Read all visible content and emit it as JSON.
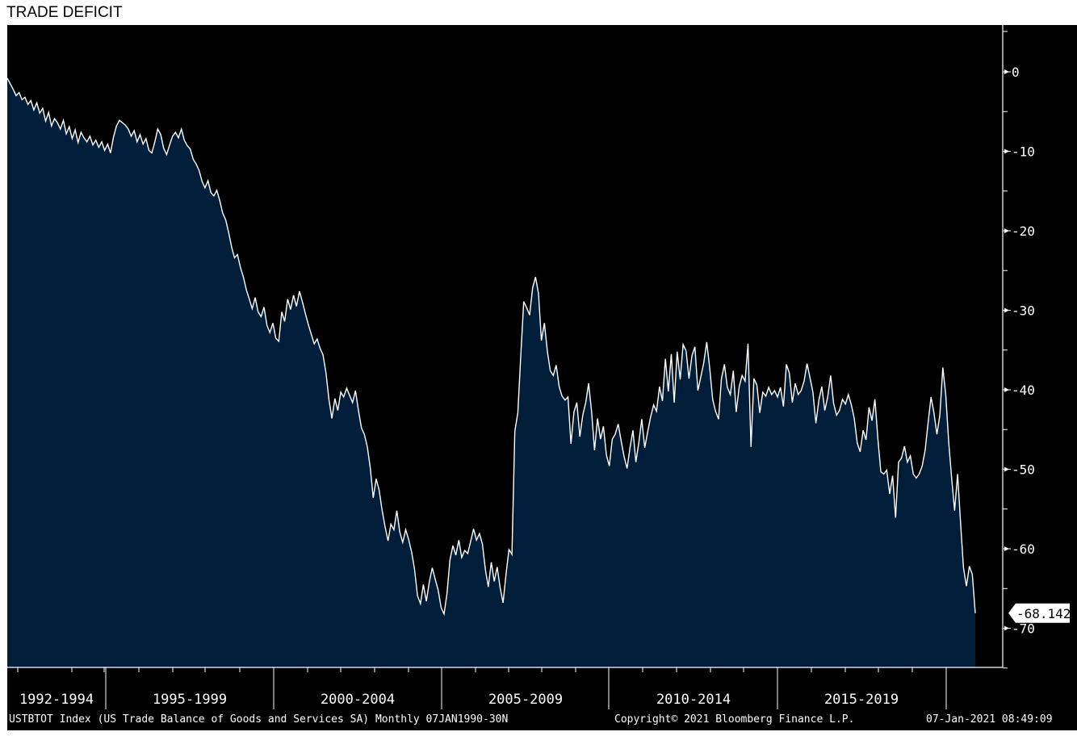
{
  "page_title": "TRADE DEFICIT",
  "chart_data": {
    "type": "area",
    "title": "TRADE DEFICIT",
    "ylim": [
      -75,
      5.5
    ],
    "y_ticks": [
      0,
      -10,
      -20,
      -30,
      -40,
      -50,
      -60,
      -70
    ],
    "y_tick_labels": [
      "0",
      "-10",
      "-20",
      "-30",
      "-40",
      "-50",
      "-60",
      "-70"
    ],
    "x_period_labels": [
      "1992-1994",
      "1995-1999",
      "2000-2004",
      "2005-2009",
      "2010-2014",
      "2015-2019"
    ],
    "last_value_label": "-68.142",
    "series": [
      {
        "values": [
          -0.8,
          -1.5,
          -2.2,
          -3.0,
          -2.6,
          -3.5,
          -3.2,
          -4.1,
          -3.6,
          -4.8,
          -3.9,
          -5.2,
          -4.6,
          -6.2,
          -5.1,
          -6.8,
          -5.9,
          -6.4,
          -7.2,
          -6.1,
          -7.8,
          -6.9,
          -8.4,
          -7.3,
          -8.9,
          -7.6,
          -8.3,
          -8.8,
          -8.1,
          -9.2,
          -8.6,
          -9.5,
          -8.8,
          -9.9,
          -9.1,
          -10.2,
          -8.2,
          -6.8,
          -6.1,
          -6.4,
          -6.7,
          -7.2,
          -8.1,
          -7.4,
          -8.8,
          -7.9,
          -9.1,
          -8.4,
          -9.9,
          -10.2,
          -8.8,
          -7.2,
          -7.9,
          -9.6,
          -10.4,
          -9.2,
          -8.1,
          -7.6,
          -8.3,
          -7.2,
          -8.6,
          -9.3,
          -9.7,
          -11.0,
          -11.6,
          -12.4,
          -13.8,
          -14.6,
          -13.7,
          -15.2,
          -15.6,
          -14.9,
          -16.2,
          -17.8,
          -18.6,
          -20.2,
          -22.0,
          -23.4,
          -23.0,
          -24.6,
          -25.8,
          -27.4,
          -28.6,
          -29.8,
          -28.4,
          -30.2,
          -30.8,
          -29.6,
          -31.9,
          -32.8,
          -31.6,
          -33.5,
          -33.9,
          -30.2,
          -31.4,
          -28.6,
          -29.9,
          -28.1,
          -29.5,
          -27.6,
          -28.9,
          -30.4,
          -31.8,
          -33.0,
          -34.2,
          -33.6,
          -34.8,
          -35.6,
          -37.9,
          -41.2,
          -43.6,
          -41.1,
          -42.6,
          -40.3,
          -40.9,
          -39.8,
          -40.7,
          -41.6,
          -40.1,
          -42.6,
          -44.8,
          -45.6,
          -47.2,
          -49.8,
          -53.6,
          -51.2,
          -52.6,
          -55.1,
          -57.2,
          -59.0,
          -56.9,
          -57.6,
          -55.2,
          -57.9,
          -59.2,
          -57.6,
          -58.8,
          -60.4,
          -62.6,
          -65.9,
          -66.9,
          -64.5,
          -66.6,
          -64.2,
          -62.4,
          -63.8,
          -65.2,
          -67.4,
          -68.2,
          -65.6,
          -61.4,
          -59.6,
          -60.8,
          -58.9,
          -61.1,
          -60.2,
          -60.6,
          -59.1,
          -57.5,
          -58.9,
          -58.1,
          -59.4,
          -62.6,
          -64.8,
          -61.7,
          -64.1,
          -62.3,
          -64.9,
          -66.8,
          -63.2,
          -60.1,
          -60.7,
          -45.2,
          -42.9,
          -35.6,
          -28.9,
          -29.7,
          -30.6,
          -27.2,
          -25.8,
          -27.9,
          -33.8,
          -31.6,
          -35.2,
          -37.6,
          -38.2,
          -36.9,
          -39.6,
          -40.8,
          -41.3,
          -40.9,
          -46.8,
          -42.8,
          -41.6,
          -45.9,
          -43.2,
          -41.6,
          -39.2,
          -42.8,
          -47.6,
          -43.6,
          -46.2,
          -44.6,
          -48.2,
          -49.6,
          -46.2,
          -45.6,
          -44.3,
          -46.4,
          -48.4,
          -49.9,
          -47.3,
          -45.1,
          -49.1,
          -46.6,
          -43.7,
          -47.3,
          -45.3,
          -43.4,
          -41.9,
          -42.7,
          -39.6,
          -41.4,
          -36.1,
          -40.2,
          -35.5,
          -41.6,
          -35.2,
          -38.7,
          -34.3,
          -35.1,
          -38.6,
          -35.7,
          -34.6,
          -40.1,
          -38.4,
          -36.6,
          -34.0,
          -37.2,
          -41.2,
          -42.7,
          -43.7,
          -38.6,
          -36.8,
          -39.7,
          -40.6,
          -37.6,
          -42.8,
          -39.6,
          -38.2,
          -38.9,
          -34.2,
          -47.2,
          -38.6,
          -39.4,
          -42.9,
          -40.3,
          -40.8,
          -39.7,
          -40.6,
          -40.1,
          -40.9,
          -39.7,
          -42.1,
          -36.8,
          -37.9,
          -41.6,
          -39.2,
          -40.6,
          -40.1,
          -38.9,
          -36.7,
          -38.5,
          -40.3,
          -44.2,
          -41.3,
          -39.6,
          -42.6,
          -40.9,
          -38.2,
          -41.7,
          -43.2,
          -42.6,
          -41.2,
          -41.8,
          -40.6,
          -41.9,
          -43.6,
          -46.7,
          -47.8,
          -45.1,
          -46.3,
          -42.2,
          -43.9,
          -41.2,
          -46.2,
          -50.3,
          -50.6,
          -50.1,
          -53.1,
          -50.8,
          -56.1,
          -49.1,
          -48.6,
          -47.1,
          -49.1,
          -48.3,
          -50.6,
          -51.1,
          -50.6,
          -49.6,
          -47.6,
          -44.2,
          -40.9,
          -42.9,
          -45.6,
          -43.2,
          -37.2,
          -40.6,
          -46.6,
          -51.2,
          -55.2,
          -50.6,
          -56.6,
          -62.4,
          -64.7,
          -62.2,
          -63.2,
          -68.1
        ]
      }
    ]
  }
}
